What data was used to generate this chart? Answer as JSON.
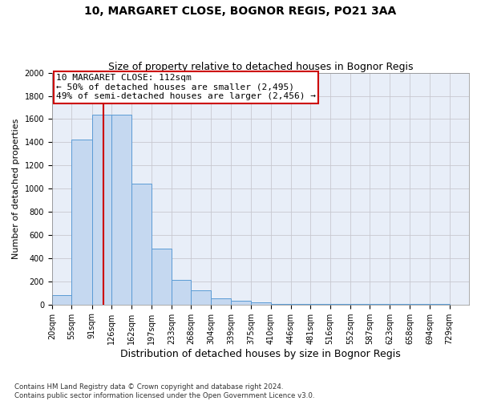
{
  "title1": "10, MARGARET CLOSE, BOGNOR REGIS, PO21 3AA",
  "title2": "Size of property relative to detached houses in Bognor Regis",
  "xlabel": "Distribution of detached houses by size in Bognor Regis",
  "ylabel": "Number of detached properties",
  "footnote": "Contains HM Land Registry data © Crown copyright and database right 2024.\nContains public sector information licensed under the Open Government Licence v3.0.",
  "bin_labels": [
    "20sqm",
    "55sqm",
    "91sqm",
    "126sqm",
    "162sqm",
    "197sqm",
    "233sqm",
    "268sqm",
    "304sqm",
    "339sqm",
    "375sqm",
    "410sqm",
    "446sqm",
    "481sqm",
    "516sqm",
    "552sqm",
    "587sqm",
    "623sqm",
    "658sqm",
    "694sqm",
    "729sqm"
  ],
  "bar_heights": [
    80,
    1420,
    1640,
    1640,
    1040,
    480,
    210,
    120,
    50,
    30,
    20,
    5,
    5,
    4,
    3,
    3,
    2,
    2,
    2,
    2,
    0
  ],
  "bin_edges": [
    20,
    55,
    91,
    126,
    162,
    197,
    233,
    268,
    304,
    339,
    375,
    410,
    446,
    481,
    516,
    552,
    587,
    623,
    658,
    694,
    729
  ],
  "bin_width": 35,
  "bar_color": "#c5d8f0",
  "bar_edge_color": "#5b9bd5",
  "property_size": 112,
  "vline_color": "#cc0000",
  "annotation_text": "10 MARGARET CLOSE: 112sqm\n← 50% of detached houses are smaller (2,495)\n49% of semi-detached houses are larger (2,456) →",
  "annotation_box_color": "#cc0000",
  "ylim": [
    0,
    2000
  ],
  "yticks": [
    0,
    200,
    400,
    600,
    800,
    1000,
    1200,
    1400,
    1600,
    1800,
    2000
  ],
  "grid_color": "#c8c8d0",
  "bg_color": "#e8eef8",
  "title1_fontsize": 10,
  "title2_fontsize": 9,
  "xlabel_fontsize": 9,
  "ylabel_fontsize": 8,
  "tick_fontsize": 7,
  "annot_fontsize": 8
}
